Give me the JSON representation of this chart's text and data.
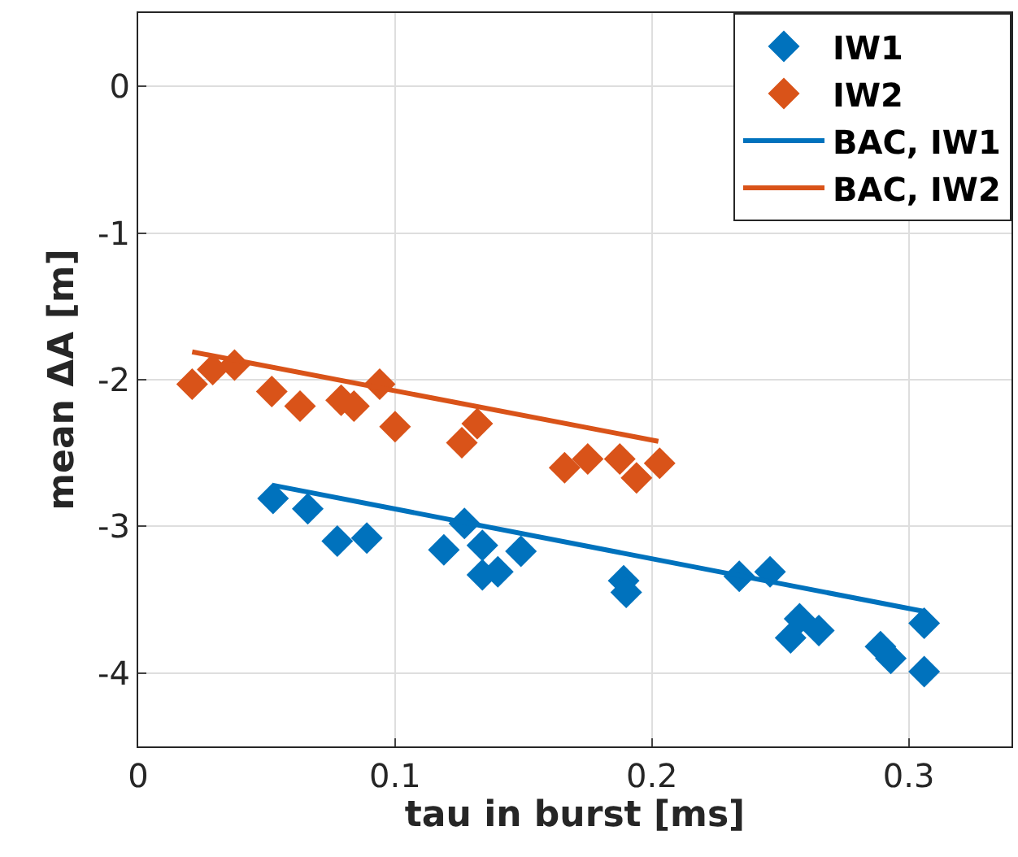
{
  "chart_data": {
    "type": "scatter",
    "xlabel": "tau in burst [ms]",
    "ylabel": "mean ΔA [m]",
    "xlim": [
      0,
      0.34
    ],
    "ylim": [
      -4.5,
      0.5
    ],
    "xticks": [
      0,
      0.1,
      0.2,
      0.3
    ],
    "yticks": [
      0,
      -1,
      -2,
      -3,
      -4
    ],
    "grid": true,
    "legend": "top right",
    "series": [
      {
        "name": "IW1",
        "color": "#0072bd",
        "marker": "diamond",
        "x": [
          0.0525,
          0.066,
          0.0775,
          0.089,
          0.119,
          0.127,
          0.134,
          0.134,
          0.14,
          0.149,
          0.189,
          0.19,
          0.234,
          0.246,
          0.254,
          0.2575,
          0.265,
          0.289,
          0.293,
          0.306,
          0.306
        ],
        "values": [
          -2.81,
          -2.88,
          -3.1,
          -3.08,
          -3.16,
          -2.98,
          -3.13,
          -3.33,
          -3.31,
          -3.17,
          -3.37,
          -3.45,
          -3.34,
          -3.31,
          -3.76,
          -3.63,
          -3.71,
          -3.82,
          -3.9,
          -3.66,
          -3.99
        ]
      },
      {
        "name": "IW2",
        "color": "#d95319",
        "marker": "diamond",
        "x": [
          0.021,
          0.029,
          0.0375,
          0.052,
          0.063,
          0.079,
          0.084,
          0.094,
          0.1,
          0.126,
          0.132,
          0.166,
          0.175,
          0.1875,
          0.194,
          0.203
        ],
        "values": [
          -2.03,
          -1.93,
          -1.9,
          -2.08,
          -2.18,
          -2.14,
          -2.18,
          -2.03,
          -2.32,
          -2.43,
          -2.3,
          -2.6,
          -2.54,
          -2.54,
          -2.67,
          -2.57
        ]
      },
      {
        "name": "BAC, IW1",
        "type": "line",
        "marker": "none",
        "color": "#0072bd",
        "x": [
          0.0525,
          0.306
        ],
        "values": [
          -2.72,
          -3.58
        ]
      },
      {
        "name": "BAC, IW2",
        "type": "line",
        "marker": "none",
        "color": "#d95319",
        "x": [
          0.021,
          0.2025
        ],
        "values": [
          -1.81,
          -2.42
        ]
      }
    ]
  }
}
